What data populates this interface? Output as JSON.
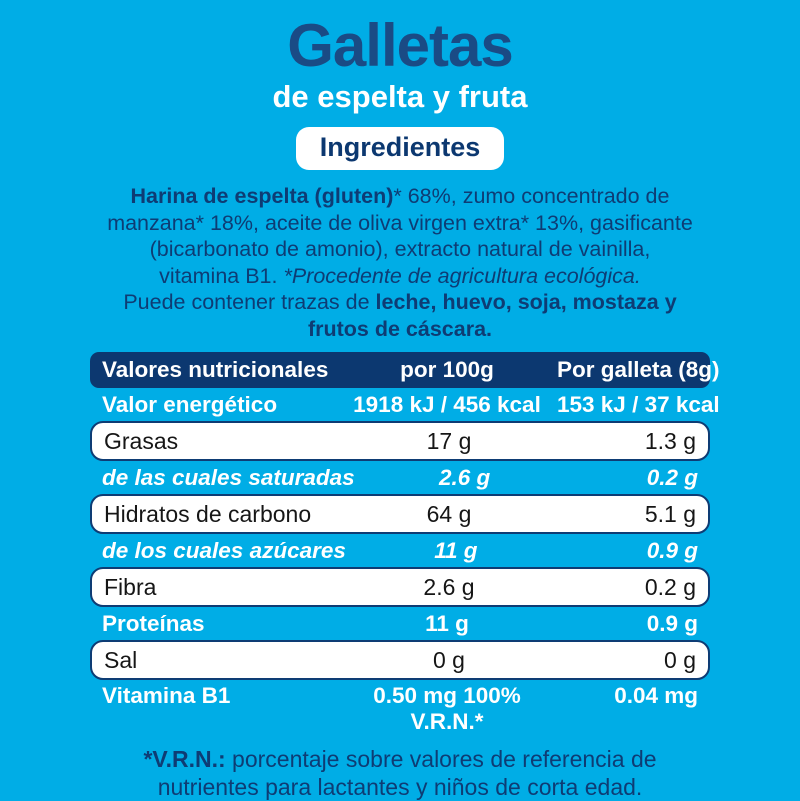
{
  "label": {
    "title": "Galletas",
    "subtitle": "de espelta y fruta",
    "badge": "Ingredientes"
  },
  "colors": {
    "background": "#00ADE6",
    "navy": "#0E3C74",
    "title_navy": "#1A4B85",
    "header_bg": "#0C3870",
    "white": "#FFFFFF",
    "row_text": "#161616"
  },
  "ingredients": {
    "lines": [
      [
        {
          "text": "Harina de espelta (gluten)",
          "style": "bold"
        },
        {
          "text": "* 68%, zumo concentrado de",
          "style": "regular"
        }
      ],
      [
        {
          "text": "manzana* 18%, aceite de oliva virgen extra* 13%, gasificante",
          "style": "regular"
        }
      ],
      [
        {
          "text": "(bicarbonato de amonio), extracto natural de vainilla,",
          "style": "regular"
        }
      ],
      [
        {
          "text": "vitamina B1. ",
          "style": "regular"
        },
        {
          "text": "*Procedente de agricultura ecológica.",
          "style": "italic"
        }
      ],
      [
        {
          "text": "Puede contener trazas de ",
          "style": "regular"
        },
        {
          "text": "leche, huevo, soja, mostaza y",
          "style": "bold"
        }
      ],
      [
        {
          "text": "frutos de cáscara.",
          "style": "bold"
        }
      ]
    ]
  },
  "nutrition_table": {
    "columns": {
      "label": "Valores nutricionales",
      "per_100g": "por 100g",
      "per_galleta": "Por galleta (8g)"
    },
    "rows": [
      {
        "label": "Valor energético",
        "per_100g": "1918 kJ / 456 kcal",
        "per_galleta": "153 kJ / 37 kcal",
        "style": "blue"
      },
      {
        "label": "Grasas",
        "per_100g": "17 g",
        "per_galleta": "1.3 g",
        "style": "white"
      },
      {
        "label": "de las cuales saturadas",
        "per_100g": "2.6 g",
        "per_galleta": "0.2 g",
        "style": "blue italic"
      },
      {
        "label": "Hidratos de carbono",
        "per_100g": "64 g",
        "per_galleta": "5.1 g",
        "style": "white"
      },
      {
        "label": "de los cuales azúcares",
        "per_100g": "11 g",
        "per_galleta": "0.9 g",
        "style": "blue italic"
      },
      {
        "label": "Fibra",
        "per_100g": "2.6 g",
        "per_galleta": "0.2 g",
        "style": "white"
      },
      {
        "label": "Proteínas",
        "per_100g": "11 g",
        "per_galleta": "0.9 g",
        "style": "blue"
      },
      {
        "label": "Sal",
        "per_100g": "0 g",
        "per_galleta": "0 g",
        "style": "white"
      },
      {
        "label": "Vitamina B1",
        "per_100g": "0.50 mg 100%",
        "per_100g_line2": "V.R.N.*",
        "per_galleta": "0.04 mg",
        "style": "blue vitamin"
      }
    ]
  },
  "footnote": {
    "lines": [
      [
        {
          "text": "*V.R.N.:",
          "style": "bold"
        },
        {
          "text": " porcentaje sobre valores de referencia de",
          "style": "regular"
        }
      ],
      [
        {
          "text": "nutrientes para lactantes y niños de corta edad.",
          "style": "regular"
        }
      ]
    ]
  }
}
